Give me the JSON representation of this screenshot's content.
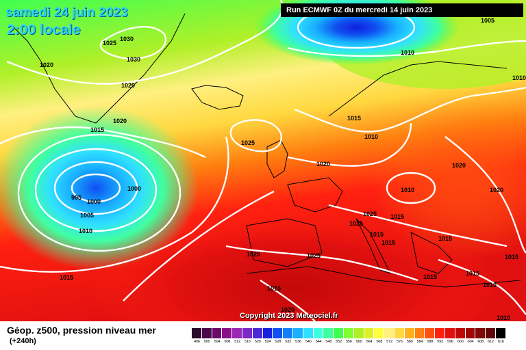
{
  "header": {
    "date": "samedi 24 juin 2023",
    "time": "2:00 locale",
    "run": "Run ECMWF 0Z du mercredi 14 juin 2023"
  },
  "footer": {
    "title": "Géop. z500, pression niveau mer",
    "subtitle": "(+240h)",
    "copyright": "Copyright 2023 Meteociel.fr"
  },
  "legend": [
    {
      "label": "496",
      "color": "#2a0a2a"
    },
    {
      "label": "500",
      "color": "#4a0a4a"
    },
    {
      "label": "504",
      "color": "#6a0a6a"
    },
    {
      "label": "508",
      "color": "#8a108a"
    },
    {
      "label": "512",
      "color": "#9a28b0"
    },
    {
      "label": "516",
      "color": "#7a28c8"
    },
    {
      "label": "520",
      "color": "#4a28d8"
    },
    {
      "label": "524",
      "color": "#1a20e0"
    },
    {
      "label": "528",
      "color": "#1050f0"
    },
    {
      "label": "532",
      "color": "#1080f8"
    },
    {
      "label": "536",
      "color": "#18b0ff"
    },
    {
      "label": "540",
      "color": "#30e0ff"
    },
    {
      "label": "544",
      "color": "#40ffe0"
    },
    {
      "label": "548",
      "color": "#40ffa0"
    },
    {
      "label": "552",
      "color": "#40ff50"
    },
    {
      "label": "556",
      "color": "#80ff30"
    },
    {
      "label": "560",
      "color": "#b0f028"
    },
    {
      "label": "564",
      "color": "#e0f028"
    },
    {
      "label": "568",
      "color": "#ffff40"
    },
    {
      "label": "572",
      "color": "#fff080"
    },
    {
      "label": "576",
      "color": "#ffd840"
    },
    {
      "label": "580",
      "color": "#ffb020"
    },
    {
      "label": "584",
      "color": "#ff8010"
    },
    {
      "label": "588",
      "color": "#ff5010"
    },
    {
      "label": "592",
      "color": "#ff2010"
    },
    {
      "label": "596",
      "color": "#e01010"
    },
    {
      "label": "600",
      "color": "#c00808"
    },
    {
      "label": "604",
      "color": "#a00808"
    },
    {
      "label": "608",
      "color": "#800808"
    },
    {
      "label": "612",
      "color": "#600808"
    },
    {
      "label": "616",
      "color": "#000000"
    }
  ],
  "isobar_labels": [
    {
      "text": "1030"
    },
    {
      "text": "1025"
    },
    {
      "text": "1030"
    },
    {
      "text": "1020"
    },
    {
      "text": "1020"
    },
    {
      "text": "1020"
    },
    {
      "text": "1015"
    },
    {
      "text": "1025"
    },
    {
      "text": "1000"
    },
    {
      "text": "995"
    },
    {
      "text": "1000"
    },
    {
      "text": "1005"
    },
    {
      "text": "1010"
    },
    {
      "text": "1015"
    },
    {
      "text": "1025"
    },
    {
      "text": "1025"
    },
    {
      "text": "1015"
    },
    {
      "text": "1020"
    },
    {
      "text": "1005"
    },
    {
      "text": "1010"
    },
    {
      "text": "1015"
    },
    {
      "text": "1010"
    },
    {
      "text": "1020"
    },
    {
      "text": "1010"
    },
    {
      "text": "1020"
    },
    {
      "text": "1025"
    },
    {
      "text": "1025"
    },
    {
      "text": "1015"
    },
    {
      "text": "1015"
    },
    {
      "text": "1015"
    },
    {
      "text": "1015"
    },
    {
      "text": "1015"
    },
    {
      "text": "1015"
    },
    {
      "text": "1010"
    },
    {
      "text": "1015"
    },
    {
      "text": "1010"
    },
    {
      "text": "1020"
    },
    {
      "text": "1010"
    }
  ]
}
